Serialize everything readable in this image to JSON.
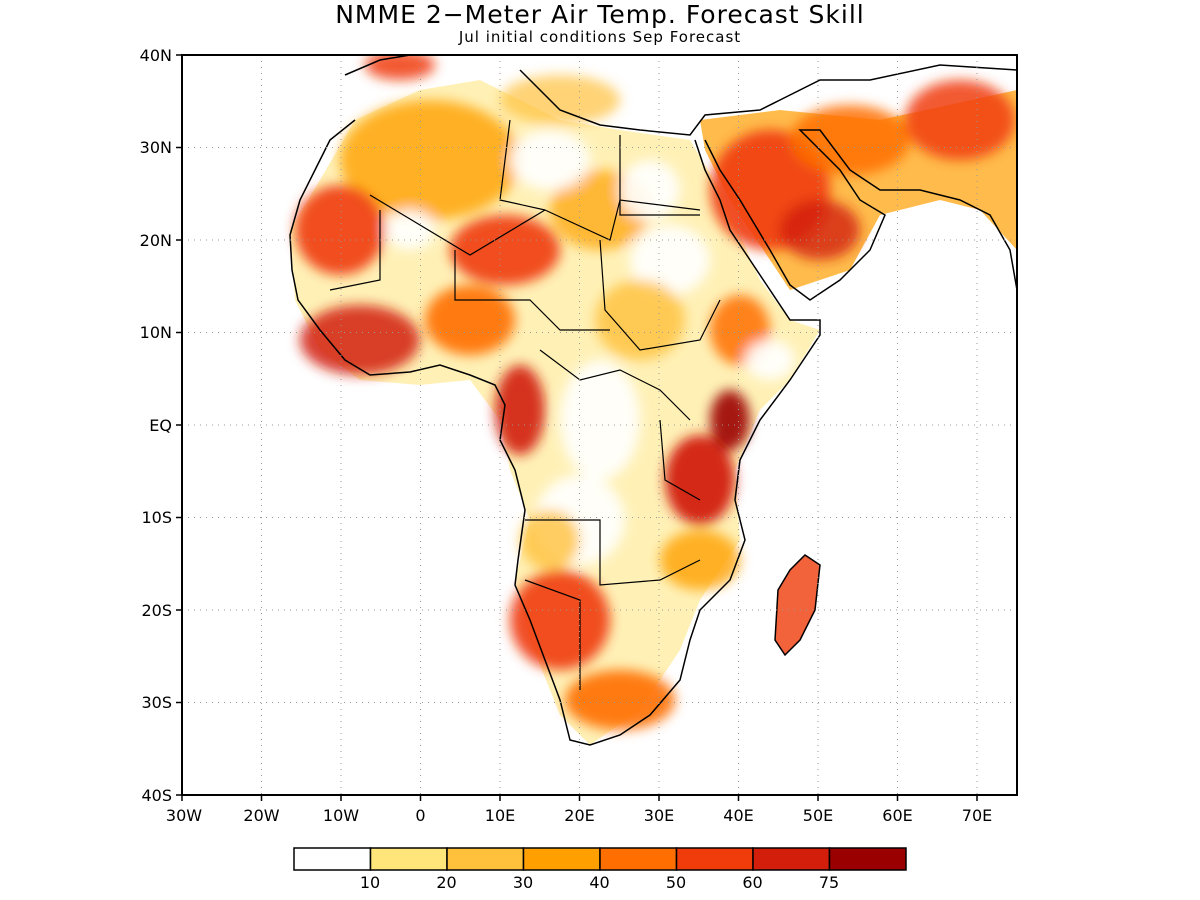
{
  "title": "NMME 2−Meter Air Temp. Forecast Skill",
  "subtitle": "Jul initial conditions  Sep Forecast",
  "map": {
    "lon_range": [
      -30,
      75
    ],
    "lat_range": [
      -40,
      40
    ],
    "y_ticks": [
      "40N",
      "30N",
      "20N",
      "10N",
      "EQ",
      "10S",
      "20S",
      "30S",
      "40S"
    ],
    "x_ticks": [
      "30W",
      "20W",
      "10W",
      "0",
      "10E",
      "20E",
      "30E",
      "40E",
      "50E",
      "60E",
      "70E"
    ],
    "gridlines": "dotted"
  },
  "colorbar": {
    "labels": [
      "10",
      "20",
      "30",
      "40",
      "50",
      "60",
      "75"
    ],
    "colors": [
      "#ffffff",
      "#ffe57a",
      "#ffc03c",
      "#ffa000",
      "#ff6e00",
      "#f03c0a",
      "#d21e0a",
      "#9b0000"
    ]
  }
}
